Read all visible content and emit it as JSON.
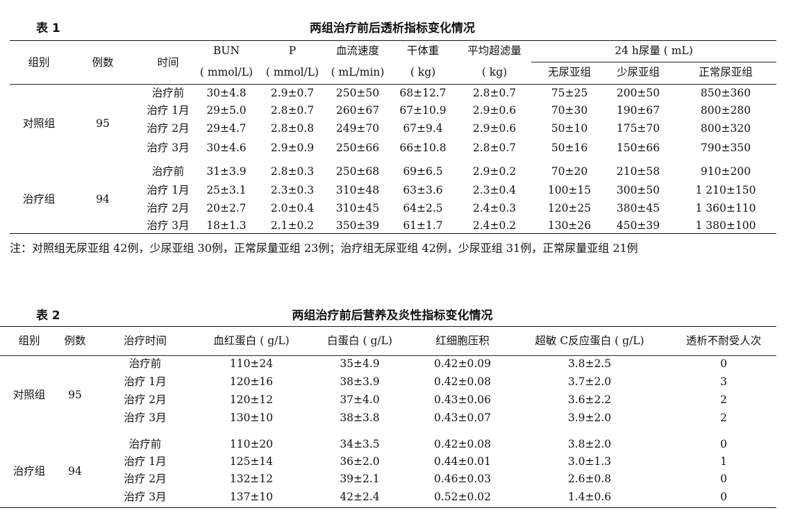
{
  "table1": {
    "label": "表 1",
    "title": "两组治疗前后透析指标变化情况",
    "headers": {
      "group": "组别",
      "count": "例数",
      "time": "时间",
      "bun": "BUN",
      "bun_unit": "( mmol/L)",
      "p": "P",
      "p_unit": "( mmol/L)",
      "flow": "血流速度",
      "flow_unit": "( mL/min)",
      "dry": "干体重",
      "dry_unit": "( kg)",
      "uf": "平均超滤量",
      "uf_unit": "( kg)",
      "urine": "24 h尿量 ( mL)",
      "sub1": "无尿亚组",
      "sub2": "少尿亚组",
      "sub3": "正常尿亚组"
    },
    "groups": [
      {
        "name": "对照组",
        "count": "95",
        "rows": [
          [
            "治疗前",
            "30±4.8",
            "2.9±0.7",
            "250±50",
            "68±12.7",
            "2.8±0.7",
            "75±25",
            "200±50",
            "850±360"
          ],
          [
            "治疗 1月",
            "29±5.0",
            "2.8±0.7",
            "260±67",
            "67±10.9",
            "2.9±0.6",
            "70±30",
            "190±67",
            "800±280"
          ],
          [
            "治疗 2月",
            "29±4.7",
            "2.8±0.8",
            "249±70",
            "67±9.4",
            "2.9±0.6",
            "50±10",
            "175±70",
            "800±320"
          ],
          [
            "治疗 3月",
            "30±4.6",
            "2.9±0.9",
            "250±66",
            "66±10.8",
            "2.8±0.7",
            "50±16",
            "150±66",
            "790±350"
          ]
        ]
      },
      {
        "name": "治疗组",
        "count": "94",
        "rows": [
          [
            "治疗前",
            "31±3.9",
            "2.8±0.3",
            "250±68",
            "69±6.5",
            "2.9±0.2",
            "70±20",
            "210±58",
            "910±200"
          ],
          [
            "治疗 1月",
            "25±3.1",
            "2.3±0.3",
            "310±48",
            "63±3.6",
            "2.3±0.4",
            "100±15",
            "300±50",
            "1 210±150"
          ],
          [
            "治疗 2月",
            "20±2.7",
            "2.0±0.4",
            "310±45",
            "64±2.5",
            "2.4±0.3",
            "120±25",
            "380±45",
            "1 360±110"
          ],
          [
            "治疗 3月",
            "18±1.3",
            "2.1±0.2",
            "350±39",
            "61±1.7",
            "2.4±0.2",
            "130±26",
            "450±39",
            "1 380±100"
          ]
        ]
      }
    ],
    "note": "注：对照组无尿亚组 42例，少尿亚组 30例，正常尿量亚组 23例；治疗组无尿亚组 42例，少尿亚组 31例，正常尿量亚组 21例"
  },
  "table2": {
    "label": "表 2",
    "title": "两组治疗前后营养及炎性指标变化情况",
    "headers": [
      "组别",
      "例数",
      "治疗时间",
      "血红蛋白 ( g/L)",
      "白蛋白 ( g/L)",
      "红细胞压积",
      "超敏 C反应蛋白 ( g/L)",
      "透析不耐受人次"
    ],
    "groups": [
      {
        "name": "对照组",
        "count": "95",
        "rows": [
          [
            "治疗前",
            "110±24",
            "35±4.9",
            "0.42±0.09",
            "3.8±2.5",
            "0"
          ],
          [
            "治疗 1月",
            "120±16",
            "38±3.9",
            "0.42±0.08",
            "3.7±2.0",
            "3"
          ],
          [
            "治疗 2月",
            "120±12",
            "37±4.0",
            "0.43±0.06",
            "3.6±2.2",
            "2"
          ],
          [
            "治疗 3月",
            "130±10",
            "38±3.8",
            "0.43±0.07",
            "3.9±2.0",
            "2"
          ]
        ]
      },
      {
        "name": "治疗组",
        "count": "94",
        "rows": [
          [
            "治疗前",
            "110±20",
            "34±3.5",
            "0.42±0.08",
            "3.8±2.0",
            "0"
          ],
          [
            "治疗 1月",
            "125±14",
            "36±2.0",
            "0.44±0.01",
            "3.0±1.3",
            "1"
          ],
          [
            "治疗 2月",
            "132±12",
            "39±2.1",
            "0.46±0.03",
            "2.6±0.8",
            "0"
          ],
          [
            "治疗 3月",
            "137±10",
            "42±2.4",
            "0.52±0.02",
            "1.4±0.6",
            "0"
          ]
        ]
      }
    ]
  }
}
